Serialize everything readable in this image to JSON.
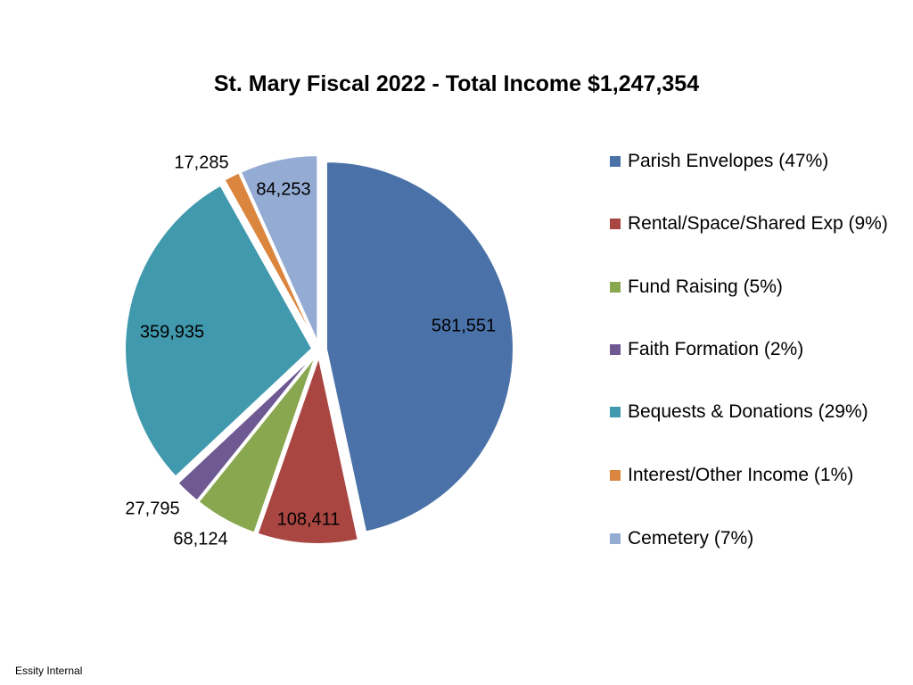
{
  "chart_data": {
    "type": "pie",
    "title": "St. Mary Fiscal 2022 - Total Income $1,247,354",
    "slices": [
      {
        "name": "Parish Envelopes (47%)",
        "value": 581551,
        "label": "581,551",
        "color": "#4a72a8"
      },
      {
        "name": "Rental/Space/Shared Exp (9%)",
        "value": 108411,
        "label": "108,411",
        "color": "#a94642"
      },
      {
        "name": "Fund Raising (5%)",
        "value": 68124,
        "label": "68,124",
        "color": "#89a74f"
      },
      {
        "name": "Faith Formation (2%)",
        "value": 27795,
        "label": "27,795",
        "color": "#6e5993"
      },
      {
        "name": "Bequests & Donations (29%)",
        "value": 359935,
        "label": "359,935",
        "color": "#4199ae"
      },
      {
        "name": "Interest/Other Income (1%)",
        "value": 17285,
        "label": "17,285",
        "color": "#db863f"
      },
      {
        "name": "Cemetery (7%)",
        "value": 84253,
        "label": "84,253",
        "color": "#94abd3"
      }
    ],
    "legend_position": "right"
  },
  "footer": "Essity Internal"
}
